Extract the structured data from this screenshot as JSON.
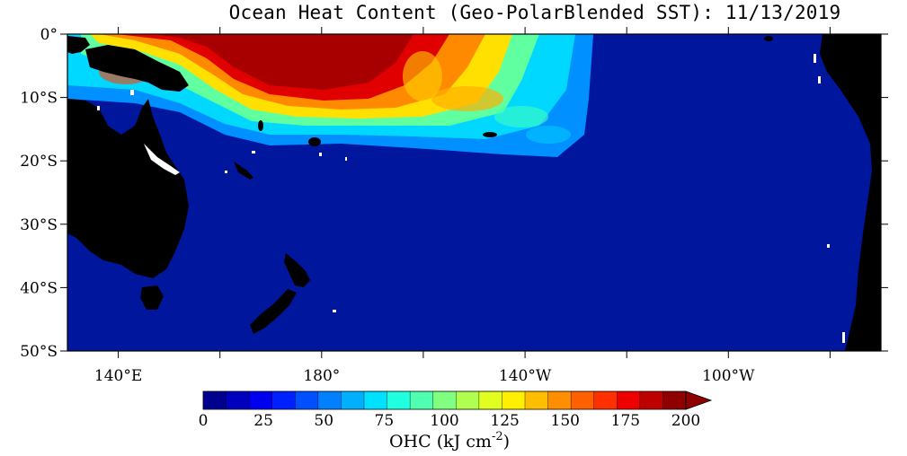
{
  "title": "Ocean Heat Content (Geo-PolarBlended SST): 11/13/2019",
  "map": {
    "lat_labels": [
      "0°",
      "10°S",
      "20°S",
      "30°S",
      "40°S",
      "50°S"
    ],
    "lon_labels": [
      "140°E",
      "180°",
      "140°W",
      "100°W"
    ],
    "lat_range": [
      -50,
      0
    ],
    "lon_range": [
      130,
      290
    ],
    "land_color": "#000000",
    "ocean_color": "#00169c"
  },
  "colorbar": {
    "label_prefix": "OHC (kJ cm",
    "label_exp": "-2",
    "label_suffix": ")",
    "tick_labels": [
      "0",
      "25",
      "50",
      "75",
      "100",
      "125",
      "150",
      "175",
      "200"
    ],
    "min": 0,
    "max": 200,
    "colors": [
      "#00008f",
      "#0000bf",
      "#0000ef",
      "#0020ff",
      "#0050ff",
      "#0080ff",
      "#00b0ff",
      "#00e0ff",
      "#20ffdf",
      "#50ffaf",
      "#80ff80",
      "#b0ff50",
      "#e0ff20",
      "#ffef00",
      "#ffbf00",
      "#ff8f00",
      "#ff6000",
      "#ff3000",
      "#ef0000",
      "#bf0000",
      "#8f0000"
    ]
  }
}
